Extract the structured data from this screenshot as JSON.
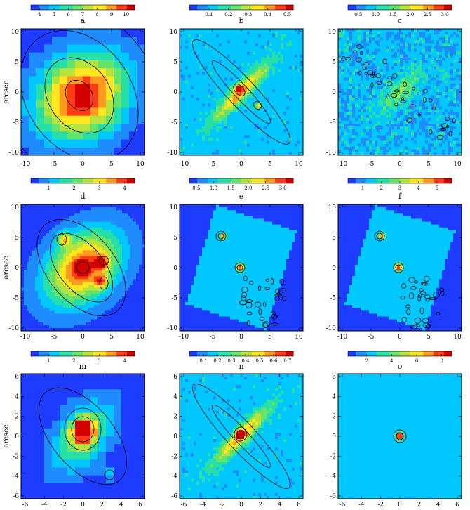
{
  "figure": {
    "y_axis_label": "arcsec",
    "rows": [
      {
        "x_ticks": [
          "-10",
          "-5",
          "0",
          "5",
          "10"
        ],
        "y_ticks": [
          "10",
          "5",
          "0",
          "-5",
          "-10"
        ],
        "panels": [
          {
            "label": "a",
            "colorbar_ticks": [
              "4",
              "5",
              "6",
              "7",
              "8",
              "9",
              "10"
            ],
            "colorbar_range": [
              3.4,
              10.6
            ],
            "style": "smooth",
            "peak": {
              "x": -0.5,
              "y": -0.5
            }
          },
          {
            "label": "b",
            "colorbar_ticks": [
              "0.1",
              "0.2",
              "0.3",
              "0.4",
              "0.5"
            ],
            "colorbar_range": [
              0.0,
              0.53
            ],
            "style": "ridge"
          },
          {
            "label": "c",
            "colorbar_ticks": [
              "0.5",
              "1.0",
              "1.5",
              "2.0",
              "2.5",
              "3.0"
            ],
            "colorbar_range": [
              0.2,
              3.2
            ],
            "style": "noisy"
          }
        ]
      },
      {
        "x_ticks": [
          "-10",
          "-5",
          "0",
          "5",
          "10"
        ],
        "y_ticks": [
          "10",
          "5",
          "0",
          "-5",
          "-10"
        ],
        "panels": [
          {
            "label": "d",
            "colorbar_ticks": [
              "1",
              "2",
              "3",
              "4"
            ],
            "colorbar_range": [
              0.3,
              4.4
            ],
            "style": "blobs"
          },
          {
            "label": "e",
            "colorbar_ticks": [
              "0.5",
              "1.0",
              "1.5",
              "2.0",
              "2.5",
              "3.0"
            ],
            "colorbar_range": [
              0.3,
              3.3
            ],
            "style": "field"
          },
          {
            "label": "f",
            "colorbar_ticks": [
              "1",
              "2",
              "3",
              "4",
              "5"
            ],
            "colorbar_range": [
              0.2,
              5.8
            ],
            "style": "field"
          }
        ]
      },
      {
        "x_ticks": [
          "-6",
          "-4",
          "-2",
          "0",
          "2",
          "4",
          "6"
        ],
        "y_ticks": [
          "6",
          "4",
          "2",
          "0",
          "-2",
          "-4",
          "-6"
        ],
        "panels": [
          {
            "label": "m",
            "colorbar_ticks": [
              "1",
              "2",
              "3",
              "4"
            ],
            "colorbar_range": [
              0.3,
              4.4
            ],
            "style": "core"
          },
          {
            "label": "n",
            "colorbar_ticks": [
              "0.1",
              "0.2",
              "0.3",
              "0.4",
              "0.5",
              "0.6",
              "0.7"
            ],
            "colorbar_range": [
              0.0,
              0.74
            ],
            "style": "ridge-core"
          },
          {
            "label": "o",
            "colorbar_ticks": [
              "2",
              "4",
              "6",
              "8"
            ],
            "colorbar_range": [
              0.5,
              8.8
            ],
            "style": "point"
          }
        ]
      }
    ]
  },
  "colors": {
    "colormap": [
      "#1e3cff",
      "#1e8cff",
      "#00c8ff",
      "#26e0a8",
      "#66e36a",
      "#b6e23c",
      "#ffe61e",
      "#ff9a1e",
      "#ff3c14",
      "#d40000"
    ],
    "contour": "#000000",
    "frame": "#000000"
  }
}
